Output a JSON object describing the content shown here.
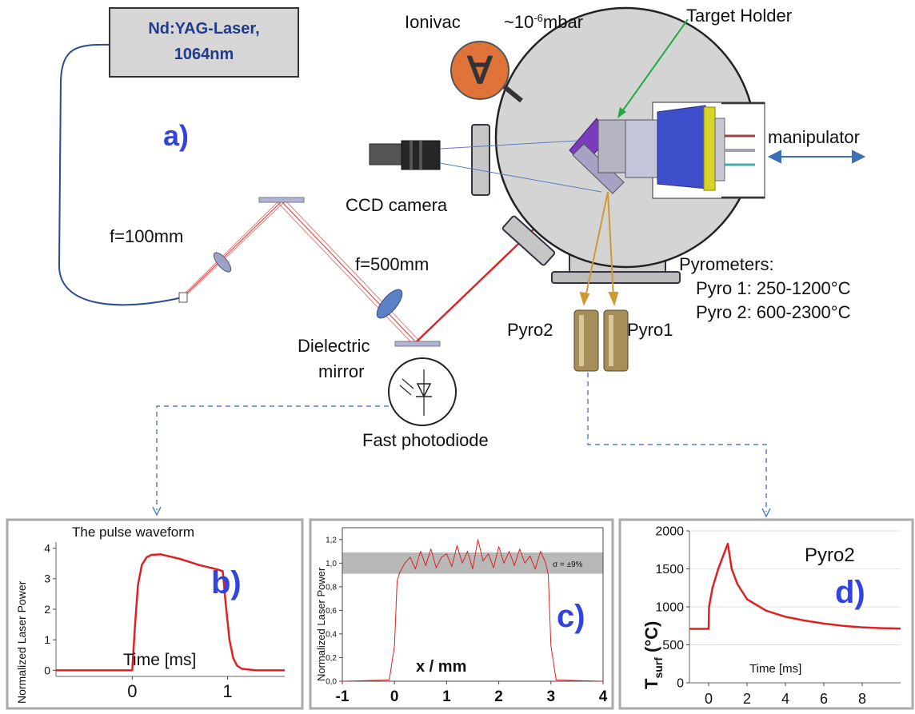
{
  "colors": {
    "beam": "#dd2222",
    "panel_letter": "#3344dd",
    "arrow_green": "#22aa44",
    "arrow_gold": "#cc9933",
    "link_blue": "#5580c0",
    "chamber": "#d4d4d4"
  },
  "laser": {
    "line1": "Nd:YAG-Laser,",
    "line2": "1064nm"
  },
  "labels": {
    "panel_a": "a)",
    "ionivac": "Ionivac",
    "pressure_base": "~10",
    "pressure_exp": "-6",
    "pressure_unit": "mbar",
    "target_holder": "Target Holder",
    "manipulator": "manipulator",
    "ccd": "CCD camera",
    "f100": "f=100mm",
    "f500": "f=500mm",
    "mirror1": "Dielectric",
    "mirror2": "mirror",
    "photodiode": "Fast photodiode",
    "pyro2": "Pyro2",
    "pyro1": "Pyro1",
    "pyrometers": "Pyrometers:",
    "pyro1_range": "Pyro 1: 250-1200°C",
    "pyro2_range": "Pyro 2: 600-2300°C",
    "ionivac_symbol": "∀"
  },
  "chart_data": [
    {
      "type": "line",
      "panel": "b)",
      "title": "The pulse waveform",
      "xlabel": "Time [ms]",
      "ylabel": "Normalized Laser Power",
      "xlim": [
        -0.8,
        1.6
      ],
      "ylim": [
        -0.2,
        4.2
      ],
      "xticks": [
        0,
        1
      ],
      "yticks": [
        0,
        1,
        2,
        3,
        4
      ],
      "x": [
        -0.8,
        0.0,
        0.03,
        0.06,
        0.1,
        0.15,
        0.2,
        0.3,
        0.5,
        0.7,
        0.9,
        0.95,
        0.98,
        1.02,
        1.06,
        1.1,
        1.15,
        1.3,
        1.6
      ],
      "y": [
        0,
        0,
        1.5,
        2.8,
        3.45,
        3.7,
        3.78,
        3.8,
        3.65,
        3.45,
        3.3,
        3.25,
        2.2,
        1.0,
        0.4,
        0.15,
        0.05,
        0,
        0
      ]
    },
    {
      "type": "line",
      "panel": "c)",
      "xlabel": "x / mm",
      "ylabel": "Normalized Laser Power",
      "xlim": [
        -1,
        4
      ],
      "ylim": [
        0,
        1.3
      ],
      "xticks": [
        -1,
        0,
        1,
        2,
        3,
        4
      ],
      "yticks": [
        "0,0",
        "0,2",
        "0,4",
        "0,6",
        "0,8",
        "1,0",
        "1,2"
      ],
      "band": [
        0.91,
        1.09
      ],
      "annotation": "σ = ±9%",
      "x": [
        -1,
        -0.1,
        0.0,
        0.05,
        0.1,
        0.2,
        0.3,
        0.4,
        0.5,
        0.6,
        0.7,
        0.8,
        0.9,
        1.0,
        1.1,
        1.2,
        1.3,
        1.4,
        1.5,
        1.6,
        1.7,
        1.8,
        1.9,
        2.0,
        2.1,
        2.2,
        2.3,
        2.4,
        2.5,
        2.6,
        2.7,
        2.8,
        2.9,
        2.95,
        3.0,
        3.1,
        4
      ],
      "y": [
        0.0,
        0.01,
        0.3,
        0.85,
        0.92,
        1.0,
        1.05,
        0.95,
        1.1,
        0.98,
        1.12,
        0.96,
        1.05,
        1.08,
        0.97,
        1.15,
        1.0,
        1.1,
        0.95,
        1.2,
        1.02,
        1.08,
        0.96,
        1.14,
        1.0,
        1.1,
        0.98,
        1.12,
        1.0,
        1.06,
        0.95,
        1.1,
        1.0,
        0.9,
        0.3,
        0.01,
        0.0
      ]
    },
    {
      "type": "line",
      "panel": "d)",
      "title": "Pyro2",
      "xlabel": "Time [ms]",
      "ylabel": "T",
      "ylabel_sub": "surf",
      "ylabel_unit": " (°C)",
      "xlim": [
        -1,
        10
      ],
      "ylim": [
        0,
        2000
      ],
      "xticks": [
        0,
        2,
        4,
        6,
        8
      ],
      "yticks": [
        0,
        500,
        1000,
        1500,
        2000
      ],
      "x": [
        -1,
        0.0,
        0.02,
        0.2,
        0.5,
        0.8,
        1.0,
        1.2,
        1.5,
        2.0,
        3.0,
        4.0,
        5.0,
        6.0,
        7.0,
        8.0,
        9.0,
        10.0
      ],
      "y": [
        710,
        710,
        1000,
        1250,
        1500,
        1700,
        1830,
        1500,
        1300,
        1100,
        950,
        870,
        820,
        780,
        750,
        730,
        720,
        715
      ]
    }
  ]
}
